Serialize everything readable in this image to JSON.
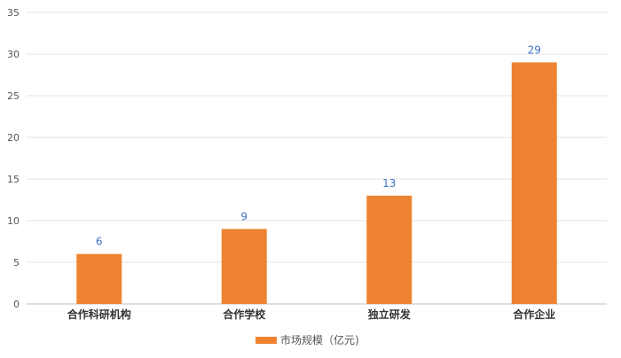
{
  "chart_data": {
    "type": "bar",
    "categories": [
      "合作科研机构",
      "合作学校",
      "独立研发",
      "合作企业"
    ],
    "series": [
      {
        "name": "市场规模（亿元)",
        "values": [
          6,
          9,
          13,
          29
        ],
        "color": "#ed8330"
      }
    ],
    "ylim": [
      0,
      35
    ],
    "yticks": [
      0,
      5,
      10,
      15,
      20,
      25,
      30,
      35
    ],
    "grid": true,
    "legend_position": "bottom",
    "data_label_color": "#4472c4"
  }
}
